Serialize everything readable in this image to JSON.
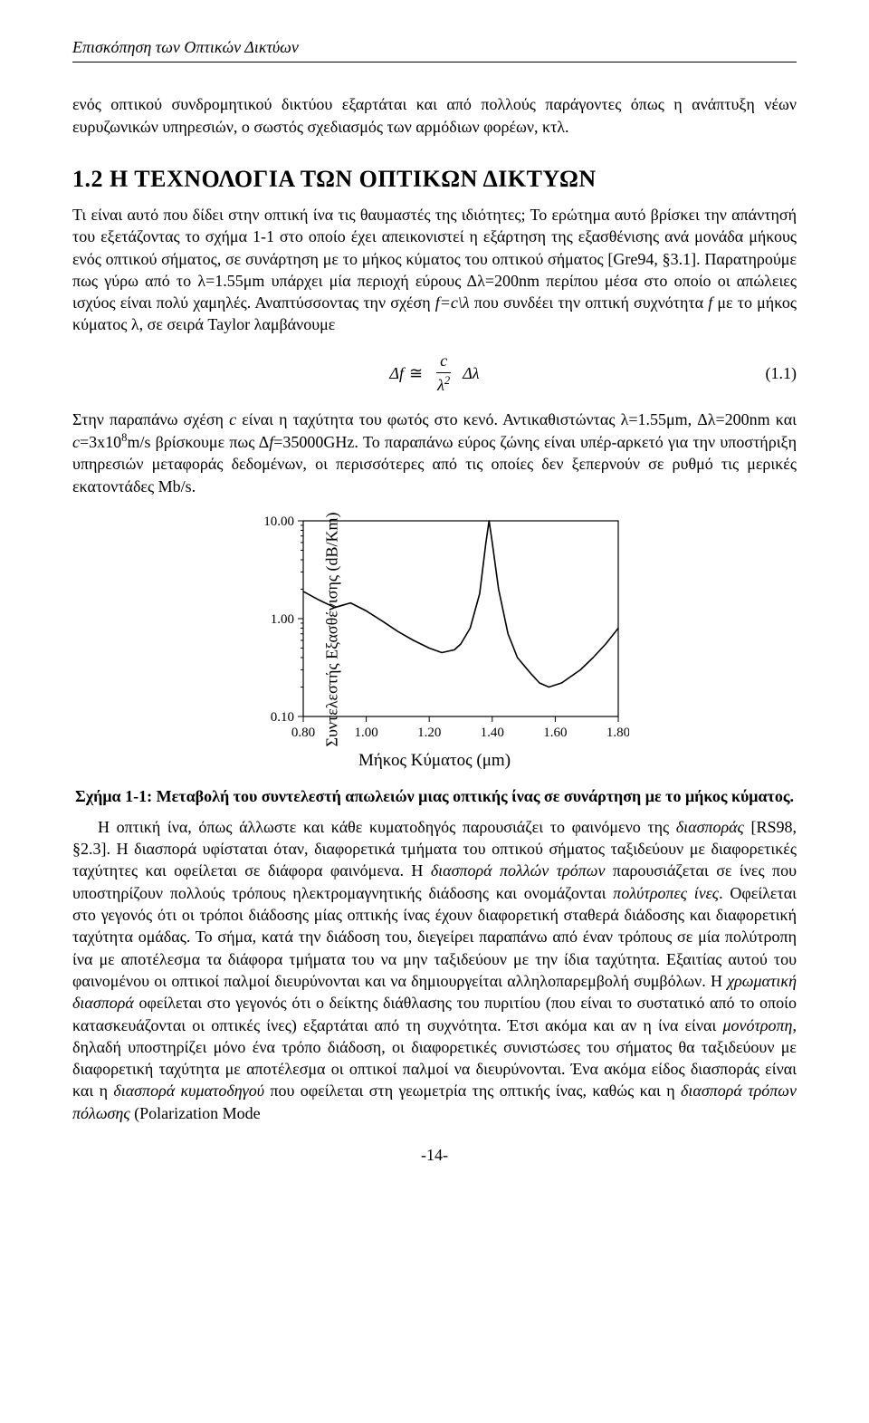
{
  "running_head": "Επισκόπηση των Οπτικών Δικτύων",
  "intro_para": "ενός οπτικού συνδρομητικού δικτύου εξαρτάται και από πολλούς παράγοντες όπως η ανάπτυξη νέων ευρυζωνικών υπηρεσιών, ο σωστός σχεδιασμός των αρμόδιων φορέων, κτλ.",
  "section_heading": "1.2 Η ΤΕΧΝΟΛΟΓΙΑ ΤΩΝ ΟΠΤΙΚΩΝ ΔΙΚΤΥΩΝ",
  "para1_a": "Τι είναι αυτό που δίδει στην οπτική ίνα τις θαυμαστές της ιδιότητες;  Το ερώτημα αυτό βρίσκει την απάντησή του εξετάζοντας το σχήμα 1-1 στο οποίο έχει απεικονιστεί η εξάρτηση της εξασθένισης ανά μονάδα μήκους ενός οπτικού σήματος, σε συνάρτηση με το μήκος κύματος του οπτικού σήματος [Gre94, §3.1]. Παρατηρούμε πως γύρω από το λ=1.55μm υπάρχει μία περιοχή εύρους Δλ=200nm περίπου μέσα στο οποίο οι απώλειες ισχύος είναι πολύ χαμηλές. Αναπτύσσοντας την σχέση ",
  "para1_b": "f=c\\λ",
  "para1_c": " που συνδέει την οπτική συχνότητα ",
  "para1_d": "f",
  "para1_e": " με το μήκος κύματος λ, σε σειρά Taylor λαμβάνουμε",
  "equation": {
    "lhs": "Δf",
    "approx": "≅",
    "num": "c",
    "den": "λ",
    "den_sup": "2",
    "rhs": "Δλ",
    "label": "(1.1)"
  },
  "para2_a": "Στην παραπάνω σχέση ",
  "para2_b": "c",
  "para2_c": " είναι η ταχύτητα του φωτός στο κενό. Αντικαθιστώντας λ=1.55μm, Δλ=200nm και ",
  "para2_d": "c",
  "para2_e": "=3x10",
  "para2_f": "8",
  "para2_g": "m/s βρίσκουμε πως Δ",
  "para2_h": "f",
  "para2_i": "=35000GHz. Το παραπάνω εύρος ζώνης είναι υπέρ-αρκετό για την υποστήριξη υπηρεσιών μεταφοράς δεδομένων, οι περισσότερες από τις οποίες δεν ξεπερνούν σε ρυθμό τις μερικές εκατοντάδες Mb/s.",
  "chart": {
    "type": "line",
    "y_label": "Συντελεστής\nΕξασθένισης (dB/Km)",
    "x_label": "Μήκος Κύματος (μm)",
    "x_ticks": [
      "0.80",
      "1.00",
      "1.20",
      "1.40",
      "1.60",
      "1.80"
    ],
    "y_ticks": [
      "0.10",
      "1.00",
      "10.00"
    ],
    "x_min": 0.8,
    "x_max": 1.8,
    "y_min_log": -1,
    "y_max_log": 1,
    "curve": [
      [
        0.8,
        1.9
      ],
      [
        0.85,
        1.55
      ],
      [
        0.9,
        1.3
      ],
      [
        0.95,
        1.45
      ],
      [
        1.0,
        1.2
      ],
      [
        1.05,
        0.95
      ],
      [
        1.1,
        0.74
      ],
      [
        1.15,
        0.6
      ],
      [
        1.2,
        0.5
      ],
      [
        1.24,
        0.45
      ],
      [
        1.28,
        0.48
      ],
      [
        1.3,
        0.55
      ],
      [
        1.33,
        0.8
      ],
      [
        1.36,
        1.8
      ],
      [
        1.38,
        6.0
      ],
      [
        1.39,
        10.0
      ],
      [
        1.4,
        6.0
      ],
      [
        1.42,
        2.0
      ],
      [
        1.45,
        0.7
      ],
      [
        1.48,
        0.4
      ],
      [
        1.52,
        0.28
      ],
      [
        1.55,
        0.22
      ],
      [
        1.58,
        0.2
      ],
      [
        1.62,
        0.22
      ],
      [
        1.68,
        0.3
      ],
      [
        1.72,
        0.4
      ],
      [
        1.76,
        0.55
      ],
      [
        1.8,
        0.8
      ]
    ],
    "line_color": "#000000",
    "line_width": 1.6,
    "grid_color": "#000000",
    "tick_font_size": 15
  },
  "fig_caption": "Σχήμα 1-1: Μεταβολή του συντελεστή απωλειών μιας οπτικής ίνας σε συνάρτηση με το μήκος κύματος.",
  "para3_a": "Η οπτική ίνα, όπως άλλωστε και κάθε κυματοδηγός παρουσιάζει το φαινόμενο της ",
  "para3_b": "διασποράς",
  "para3_c": " [RS98, §2.3]. Η διασπορά υφίσταται όταν, διαφορετικά τμήματα του οπτικού σήματος ταξιδεύουν με διαφορετικές ταχύτητες και οφείλεται σε διάφορα φαινόμενα.  Η ",
  "para3_d": "διασπορά πολλών τρόπων",
  "para3_e": " παρουσιάζεται σε ίνες που υποστηρίζουν πολλούς τρόπους ηλεκτρομαγνητικής διάδοσης και ονομάζονται ",
  "para3_f": "πολύτροπες ίνες",
  "para3_g": ".   Οφείλεται στο γεγονός ότι οι τρόποι διάδοσης μίας οπτικής ίνας έχουν διαφορετική σταθερά διάδοσης και διαφορετική ταχύτητα ομάδας.  Το σήμα, κατά την διάδοση του, διεγείρει παραπάνω από έναν τρόπους σε μία πολύτροπη ίνα με αποτέλεσμα τα διάφορα τμήματα του να μην ταξιδεύουν με την ίδια ταχύτητα.   Εξαιτίας αυτού του φαινομένου οι οπτικοί παλμοί διευρύνονται και να δημιουργείται αλληλοπαρεμβολή συμβόλων.  Η ",
  "para3_h": "χρωματική διασπορά",
  "para3_i": " οφείλεται στο γεγονός ότι ο δείκτης διάθλασης του πυριτίου (που είναι το συστατικό από το οποίο κατασκευάζονται οι οπτικές ίνες) εξαρτάται από τη συχνότητα. Έτσι ακόμα και αν η ίνα είναι ",
  "para3_j": "μονότροπη",
  "para3_k": ", δηλαδή υποστηρίζει μόνο ένα τρόπο διάδοση, οι διαφορετικές συνιστώσες του σήματος θα ταξιδεύουν με διαφορετική ταχύτητα με αποτέλεσμα οι οπτικοί παλμοί να διευρύνονται. Ένα ακόμα είδος διασποράς είναι και η ",
  "para3_l": "διασπορά κυματοδηγού",
  "para3_m": " που οφείλεται στη γεωμετρία της οπτικής ίνας, καθώς και η ",
  "para3_n": "διασπορά τρόπων πόλωσης",
  "para3_o": " (Polarization Mode",
  "page_num": "-14-"
}
